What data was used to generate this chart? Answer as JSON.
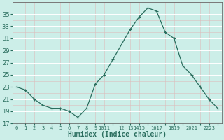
{
  "x": [
    0,
    1,
    2,
    3,
    4,
    5,
    6,
    7,
    8,
    9,
    10,
    11,
    13,
    14,
    15,
    16,
    17,
    18,
    19,
    20,
    21,
    22,
    23
  ],
  "y": [
    23,
    22.5,
    21,
    20,
    19.5,
    19.5,
    19,
    18,
    19.5,
    23.5,
    25,
    27.5,
    32.5,
    34.5,
    36,
    35.5,
    32,
    31,
    26.5,
    25,
    23,
    21,
    19.5
  ],
  "xlabel": "Humidex (Indice chaleur)",
  "xlim": [
    -0.5,
    23.5
  ],
  "ylim": [
    17,
    37
  ],
  "yticks": [
    17,
    19,
    21,
    23,
    25,
    27,
    29,
    31,
    33,
    35
  ],
  "bg_color": "#cceee8",
  "line_color": "#2a6e5e",
  "marker_color": "#2a6e5e",
  "major_grid_color": "#ffffff",
  "minor_grid_color": "#ddbcbc"
}
